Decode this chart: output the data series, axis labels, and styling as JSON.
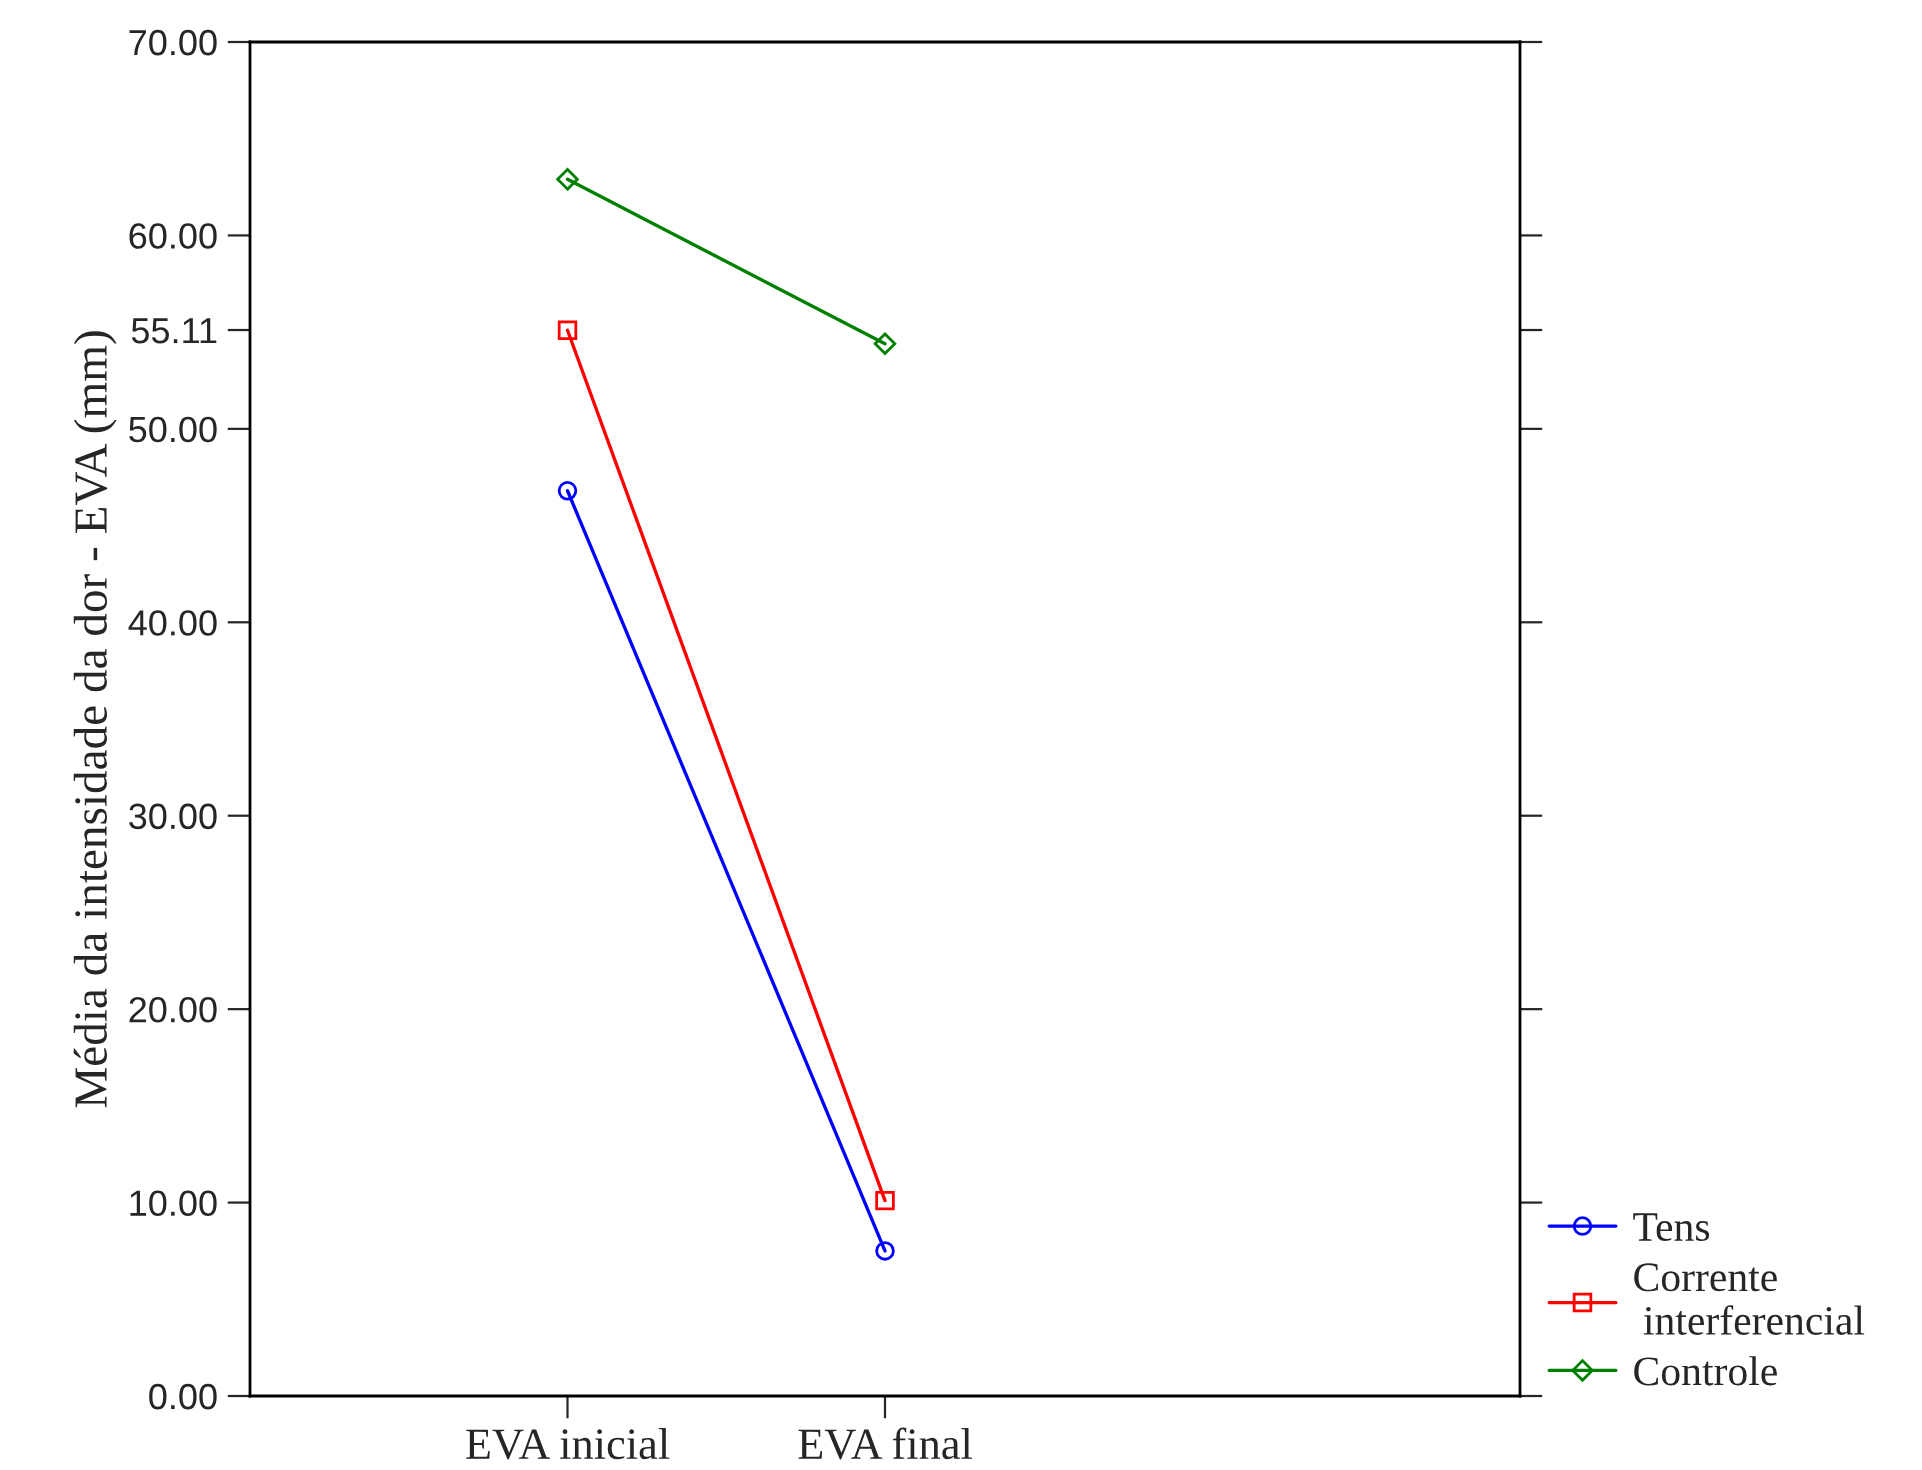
{
  "chart_data": {
    "type": "line",
    "ylabel": "Média da intensidade da dor - EVA (mm)",
    "categories": [
      "EVA inicial",
      "EVA final"
    ],
    "series": [
      {
        "name": "Tens",
        "color": "#0000ff",
        "values": [
          46.8,
          7.5
        ],
        "marker": "circle"
      },
      {
        "name": "Corrente\n interferencial",
        "color": "#ff0000",
        "values": [
          55.1,
          10.1
        ],
        "marker": "square"
      },
      {
        "name": "Controle",
        "color": "#008000",
        "values": [
          62.9,
          54.4
        ],
        "marker": "diamond"
      }
    ],
    "ylim": [
      0,
      70
    ],
    "yticks": [
      {
        "value": 0,
        "label": "0.00"
      },
      {
        "value": 10,
        "label": "10.00"
      },
      {
        "value": 20,
        "label": "20.00"
      },
      {
        "value": 30,
        "label": "30.00"
      },
      {
        "value": 40,
        "label": "40.00"
      },
      {
        "value": 50,
        "label": "50.00"
      },
      {
        "value": 55.11,
        "label": "55.11"
      },
      {
        "value": 60,
        "label": "60.00"
      },
      {
        "value": 70,
        "label": "70.00"
      }
    ],
    "grid": false,
    "legend": "bottom right",
    "line_style": "solid"
  }
}
